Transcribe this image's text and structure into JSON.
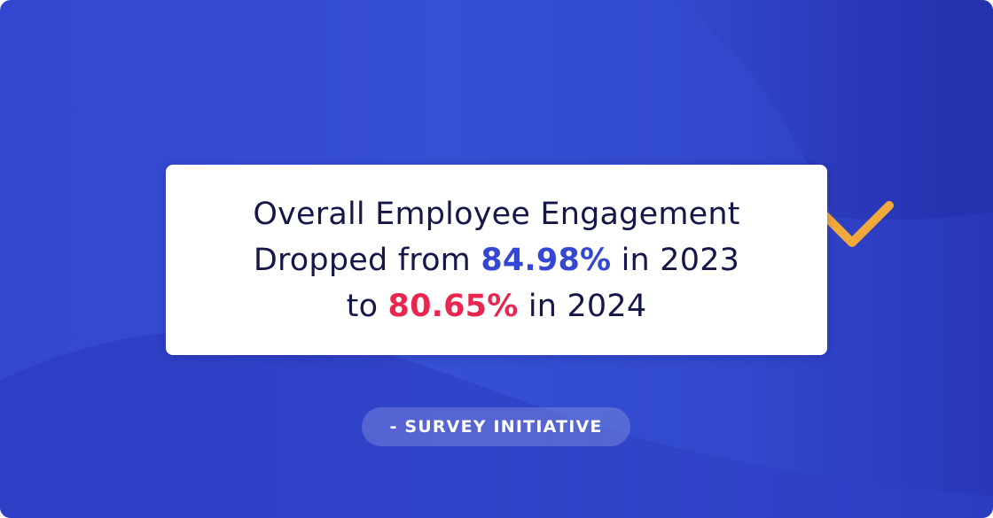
{
  "headline": {
    "line1": "Overall Employee Engagement",
    "line2_prefix": "Dropped from ",
    "value_2023": "84.98%",
    "line2_suffix": " in 2023",
    "line3_prefix": "to ",
    "value_2024": "80.65%",
    "line3_suffix": " in 2024"
  },
  "attribution": {
    "label": "- SURVEY INITIATIVE"
  },
  "icons": {
    "trend": "arrow-down-icon"
  },
  "colors": {
    "background": "#3549d0",
    "headline_text": "#151748",
    "value_2023": "#3447d3",
    "value_2024": "#e8264f",
    "arrow": "#f2a93b"
  }
}
